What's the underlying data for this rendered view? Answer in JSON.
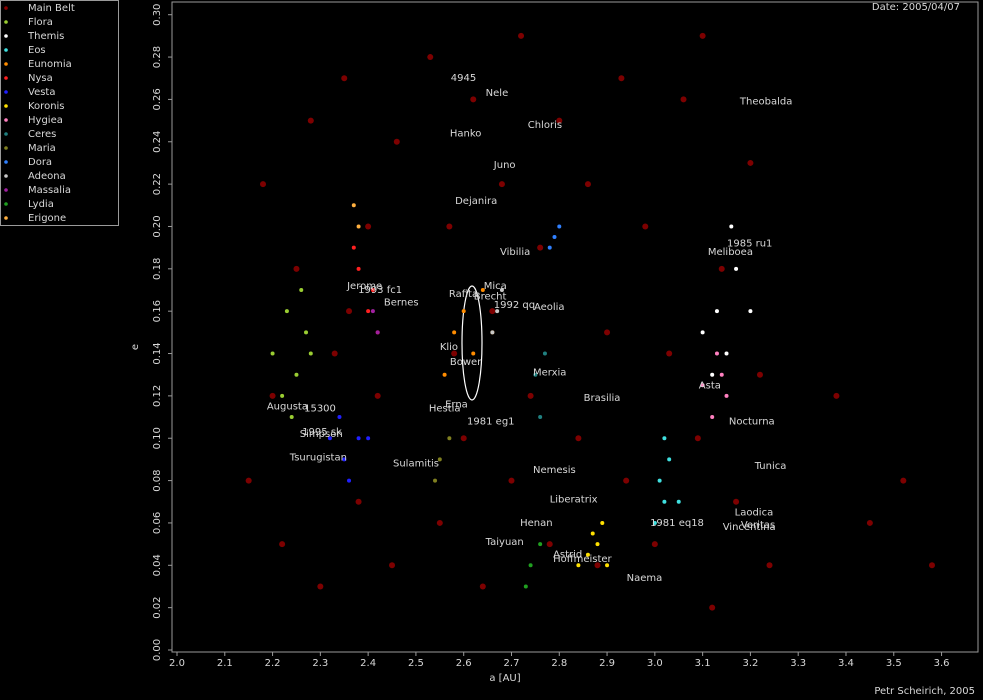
{
  "chart_data": {
    "type": "scatter",
    "title": "Date: 2005/04/07",
    "credit": "Petr Scheirich, 2005",
    "xlabel": "a [AU]",
    "ylabel": "e",
    "xlim": [
      2.0,
      3.67
    ],
    "ylim": [
      0,
      0.306
    ],
    "xticks": [
      {
        "value": 2,
        "label": "2.0"
      },
      2.1,
      2.2,
      2.3,
      2.4,
      2.5,
      2.6,
      2.7,
      2.8,
      2.9,
      {
        "value": 3,
        "label": "3.0"
      },
      3.1,
      3.2,
      3.3,
      3.4,
      3.5,
      3.6
    ],
    "yticks": [
      {
        "value": 0,
        "label": "0.00"
      },
      0.02,
      0.04,
      0.06,
      0.08,
      {
        "value": 0.1,
        "label": "0.10"
      },
      0.12,
      0.14,
      0.16,
      0.18,
      {
        "value": 0.2,
        "label": "0.20"
      },
      0.22,
      0.24,
      0.26,
      0.28,
      {
        "value": 0.3,
        "label": "0.30"
      }
    ],
    "legend": "top-left-outside",
    "series": [
      {
        "name": "Main Belt",
        "color": "#8b0000",
        "x": [
          2.15,
          2.18,
          2.22,
          2.25,
          2.28,
          2.3,
          2.33,
          2.35,
          2.38,
          2.4,
          2.42,
          2.45,
          2.46,
          2.2,
          2.36,
          2.53,
          2.55,
          2.57,
          2.6,
          2.62,
          2.64,
          2.66,
          2.68,
          2.7,
          2.72,
          2.74,
          2.76,
          2.78,
          2.8,
          2.58,
          2.84,
          2.86,
          2.88,
          2.9,
          2.93,
          2.94,
          2.98,
          3.0,
          3.03,
          3.06,
          3.09,
          3.12,
          3.14,
          3.17,
          3.2,
          3.22,
          3.24,
          3.1,
          3.38,
          3.45,
          3.52,
          3.58
        ],
        "values": [
          0.08,
          0.22,
          0.05,
          0.18,
          0.25,
          0.03,
          0.14,
          0.27,
          0.07,
          0.2,
          0.12,
          0.04,
          0.24,
          0.12,
          0.16,
          0.28,
          0.06,
          0.2,
          0.1,
          0.26,
          0.03,
          0.16,
          0.22,
          0.08,
          0.29,
          0.12,
          0.19,
          0.05,
          0.25,
          0.14,
          0.1,
          0.22,
          0.04,
          0.15,
          0.27,
          0.08,
          0.2,
          0.05,
          0.14,
          0.26,
          0.1,
          0.02,
          0.18,
          0.07,
          0.23,
          0.13,
          0.04,
          0.29,
          0.12,
          0.06,
          0.08,
          0.04
        ]
      },
      {
        "name": "Flora",
        "color": "#9acd32",
        "x": [
          2.2,
          2.23,
          2.25,
          2.27,
          2.22,
          2.26,
          2.24,
          2.28
        ],
        "values": [
          0.14,
          0.16,
          0.13,
          0.15,
          0.12,
          0.17,
          0.11,
          0.14
        ]
      },
      {
        "name": "Themis",
        "color": "#ffffff",
        "x": [
          3.1,
          3.13,
          3.15,
          3.17,
          3.12,
          3.16,
          3.2
        ],
        "values": [
          0.15,
          0.16,
          0.14,
          0.18,
          0.13,
          0.2,
          0.16
        ]
      },
      {
        "name": "Eos",
        "color": "#40e0e0",
        "x": [
          3.01,
          3.02,
          3.03,
          3.0,
          3.02,
          3.05
        ],
        "values": [
          0.08,
          0.07,
          0.09,
          0.06,
          0.1,
          0.07
        ]
      },
      {
        "name": "Eunomia",
        "color": "#ff8c00",
        "x": [
          2.58,
          2.6,
          2.62,
          2.64,
          2.56,
          2.66
        ],
        "values": [
          0.15,
          0.16,
          0.14,
          0.17,
          0.13,
          0.15
        ]
      },
      {
        "name": "Nysa",
        "color": "#ff2020",
        "x": [
          2.38,
          2.4,
          2.42,
          2.37,
          2.41
        ],
        "values": [
          0.18,
          0.16,
          0.15,
          0.19,
          0.17
        ]
      },
      {
        "name": "Vesta",
        "color": "#2020ff",
        "x": [
          2.32,
          2.35,
          2.38,
          2.34,
          2.36,
          2.4
        ],
        "values": [
          0.1,
          0.09,
          0.1,
          0.11,
          0.08,
          0.1
        ]
      },
      {
        "name": "Koronis",
        "color": "#ffe000",
        "x": [
          2.86,
          2.88,
          2.9,
          2.87,
          2.84,
          2.89
        ],
        "values": [
          0.045,
          0.05,
          0.04,
          0.055,
          0.04,
          0.06
        ]
      },
      {
        "name": "Hygiea",
        "color": "#ff80c0",
        "x": [
          3.13,
          3.15,
          3.12,
          3.14,
          3.1
        ],
        "values": [
          0.14,
          0.12,
          0.11,
          0.13,
          0.125
        ]
      },
      {
        "name": "Ceres",
        "color": "#208080",
        "x": [
          2.75,
          2.77,
          2.76
        ],
        "values": [
          0.13,
          0.14,
          0.11
        ]
      },
      {
        "name": "Maria",
        "color": "#808020",
        "x": [
          2.55,
          2.57,
          2.54
        ],
        "values": [
          0.09,
          0.1,
          0.08
        ]
      },
      {
        "name": "Dora",
        "color": "#3080ff",
        "x": [
          2.79,
          2.8,
          2.78
        ],
        "values": [
          0.195,
          0.2,
          0.19
        ]
      },
      {
        "name": "Adeona",
        "color": "#c8c8c8",
        "x": [
          2.67,
          2.68,
          2.66
        ],
        "values": [
          0.16,
          0.17,
          0.15
        ]
      },
      {
        "name": "Massalia",
        "color": "#a020a0",
        "x": [
          2.41,
          2.42
        ],
        "values": [
          0.16,
          0.15
        ]
      },
      {
        "name": "Lydia",
        "color": "#20a020",
        "x": [
          2.74,
          2.76,
          2.73
        ],
        "values": [
          0.04,
          0.05,
          0.03
        ]
      },
      {
        "name": "Erigone",
        "color": "#ffb040",
        "x": [
          2.37,
          2.38
        ],
        "values": [
          0.21,
          0.2
        ]
      }
    ],
    "annotations": [
      {
        "text": "4945",
        "x": 2.573,
        "y": 0.27
      },
      {
        "text": "Nele",
        "x": 2.646,
        "y": 0.263
      },
      {
        "text": "Theobalda",
        "x": 3.178,
        "y": 0.259
      },
      {
        "text": "Hanko",
        "x": 2.571,
        "y": 0.244
      },
      {
        "text": "Chloris",
        "x": 2.734,
        "y": 0.248
      },
      {
        "text": "Juno",
        "x": 2.663,
        "y": 0.229
      },
      {
        "text": "Dejanira",
        "x": 2.582,
        "y": 0.212
      },
      {
        "text": "1985 ru1",
        "x": 3.151,
        "y": 0.192
      },
      {
        "text": "Meliboea",
        "x": 3.111,
        "y": 0.188
      },
      {
        "text": "Vibilia",
        "x": 2.676,
        "y": 0.188
      },
      {
        "text": "Jerome",
        "x": 2.356,
        "y": 0.172
      },
      {
        "text": "1993 fc1",
        "x": 2.379,
        "y": 0.17
      },
      {
        "text": "Bernes",
        "x": 2.433,
        "y": 0.164
      },
      {
        "text": "Mica",
        "x": 2.642,
        "y": 0.172
      },
      {
        "text": "Rafita",
        "x": 2.569,
        "y": 0.168
      },
      {
        "text": "Brecht",
        "x": 2.621,
        "y": 0.167
      },
      {
        "text": "1992 qq",
        "x": 2.663,
        "y": 0.163
      },
      {
        "text": "Aeolia",
        "x": 2.747,
        "y": 0.162
      },
      {
        "text": "Klio",
        "x": 2.55,
        "y": 0.143
      },
      {
        "text": "Bower",
        "x": 2.571,
        "y": 0.136
      },
      {
        "text": "Merxia",
        "x": 2.745,
        "y": 0.131
      },
      {
        "text": "Asta",
        "x": 3.092,
        "y": 0.125
      },
      {
        "text": "Brasilia",
        "x": 2.851,
        "y": 0.119
      },
      {
        "text": "Augusta",
        "x": 2.188,
        "y": 0.115
      },
      {
        "text": "15300",
        "x": 2.266,
        "y": 0.114
      },
      {
        "text": "Hestia",
        "x": 2.527,
        "y": 0.114
      },
      {
        "text": "Erna",
        "x": 2.561,
        "y": 0.116
      },
      {
        "text": "1981 eg1",
        "x": 2.607,
        "y": 0.108
      },
      {
        "text": "Nocturna",
        "x": 3.155,
        "y": 0.108
      },
      {
        "text": "1995 sk",
        "x": 2.262,
        "y": 0.103
      },
      {
        "text": "Simpson",
        "x": 2.257,
        "y": 0.102
      },
      {
        "text": "Tsurugistan",
        "x": 2.236,
        "y": 0.091
      },
      {
        "text": "Sulamitis",
        "x": 2.452,
        "y": 0.088
      },
      {
        "text": "Tunica",
        "x": 3.209,
        "y": 0.087
      },
      {
        "text": "Nemesis",
        "x": 2.745,
        "y": 0.085
      },
      {
        "text": "Liberatrix",
        "x": 2.78,
        "y": 0.071
      },
      {
        "text": "Laodica",
        "x": 3.167,
        "y": 0.065
      },
      {
        "text": "1981 eq18",
        "x": 2.99,
        "y": 0.06
      },
      {
        "text": "Veritas",
        "x": 3.18,
        "y": 0.059
      },
      {
        "text": "Vincentina",
        "x": 3.142,
        "y": 0.058
      },
      {
        "text": "Henan",
        "x": 2.718,
        "y": 0.06
      },
      {
        "text": "Taiyuan",
        "x": 2.646,
        "y": 0.051
      },
      {
        "text": "Astrid",
        "x": 2.787,
        "y": 0.045
      },
      {
        "text": "Hoffmeister",
        "x": 2.787,
        "y": 0.043
      },
      {
        "text": "Naema",
        "x": 2.941,
        "y": 0.034
      }
    ]
  }
}
